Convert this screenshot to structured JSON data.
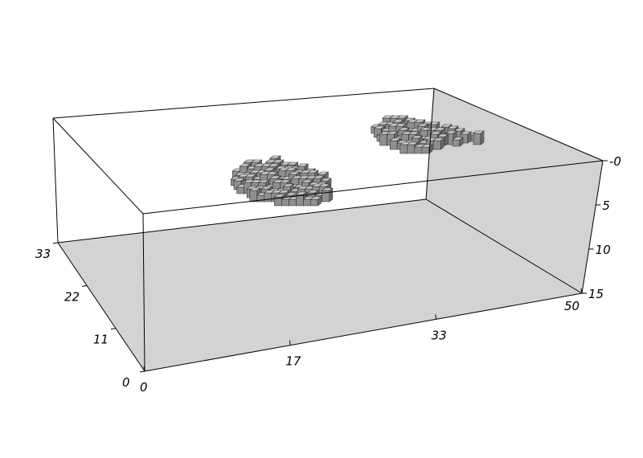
{
  "axes": {
    "x": {
      "ticks": [
        "0",
        "17",
        "33",
        "50"
      ],
      "range": [
        0,
        50
      ]
    },
    "y": {
      "ticks": [
        "0",
        "11",
        "22",
        "33"
      ],
      "range": [
        0,
        33
      ]
    },
    "z": {
      "ticks": [
        "-0",
        "5",
        "10",
        "15"
      ],
      "range": [
        0,
        15
      ]
    }
  },
  "bodies": [
    {
      "name": "voxel-body-1"
    },
    {
      "name": "voxel-body-2"
    }
  ],
  "colors": {
    "face": "#d3d3d3",
    "voxel_top": "#cfcfcf",
    "voxel_front": "#8f8f8f",
    "voxel_side": "#6c6c6c"
  }
}
